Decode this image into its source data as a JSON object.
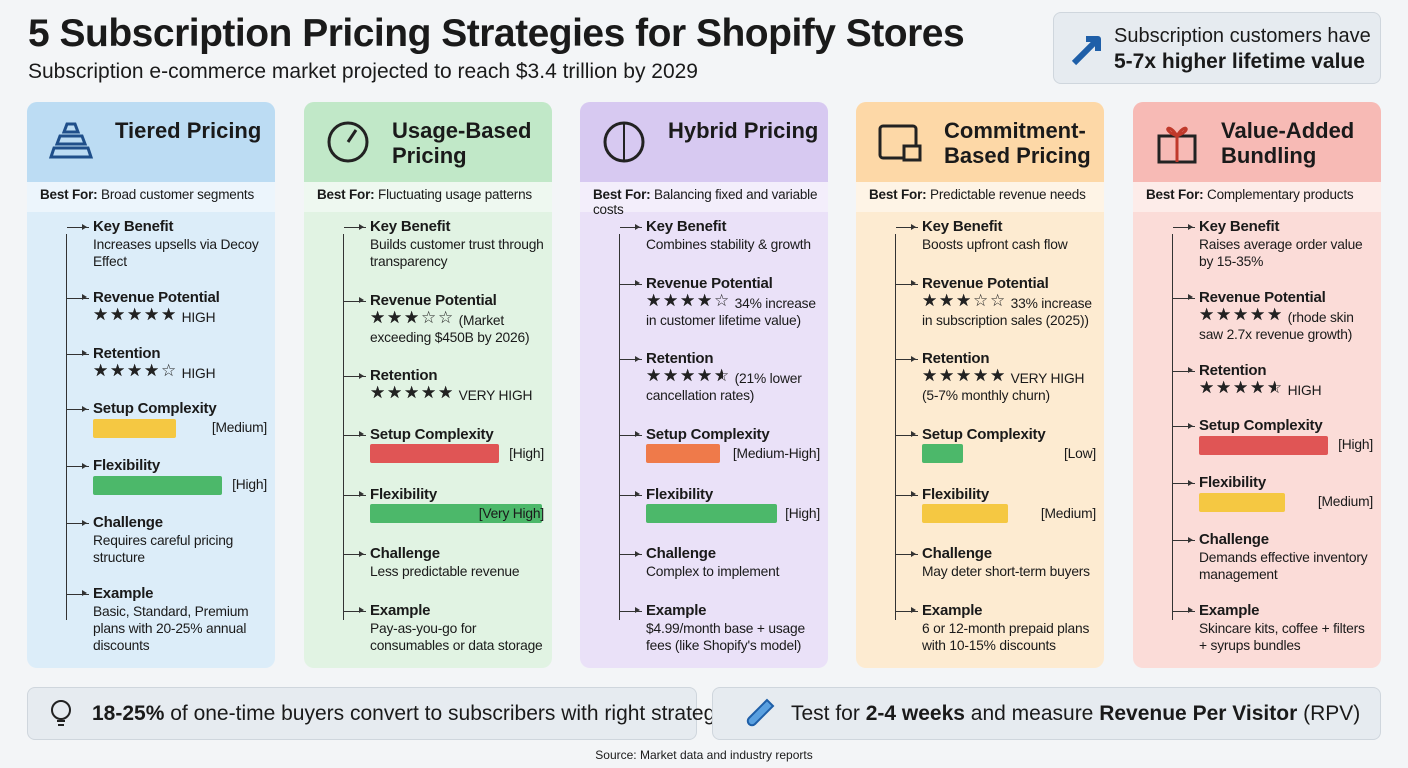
{
  "header": {
    "title": "5 Subscription Pricing Strategies for Shopify Stores",
    "subtitle": "Subscription e-commerce market projected to reach $3.4 trillion by 2029"
  },
  "callout": {
    "line1": "Subscription customers have",
    "line2": "5-7x higher lifetime value"
  },
  "labels": {
    "best_for": "Best For:",
    "key_benefit": "Key Benefit",
    "revenue": "Revenue Potential",
    "retention": "Retention",
    "setup": "Setup Complexity",
    "flexibility": "Flexibility",
    "challenge": "Challenge",
    "example": "Example"
  },
  "columns": [
    {
      "title": "Tiered Pricing",
      "head_color": "#bcdcf3",
      "body_color": "#dcedf9",
      "best_for": "Broad customer segments",
      "key_benefit": "Increases upsells via Decoy Effect",
      "revenue": {
        "stars": 5,
        "text": "HIGH"
      },
      "retention": {
        "stars": 4,
        "text": "HIGH"
      },
      "setup": {
        "level": 0.48,
        "color": "#f5c842",
        "label": "[Medium]"
      },
      "flexibility": {
        "level": 0.75,
        "color": "#4cb86a",
        "label": "[High]"
      },
      "challenge": "Requires careful pricing structure",
      "example": "Basic, Standard, Premium plans with 20-25% annual discounts"
    },
    {
      "title": "Usage-Based Pricing",
      "head_color": "#c1e8c8",
      "body_color": "#e1f3e3",
      "best_for": "Fluctuating usage patterns",
      "key_benefit": "Builds customer trust through transparency",
      "revenue": {
        "stars": 3,
        "text": "(Market exceeding $450B by 2026)"
      },
      "retention": {
        "stars": 5,
        "text": "VERY HIGH"
      },
      "setup": {
        "level": 0.75,
        "color": "#e05555",
        "label": "[High]"
      },
      "flexibility": {
        "level": 1,
        "color": "#4cb86a",
        "label": "[Very High]"
      },
      "challenge": "Less predictable revenue",
      "example": "Pay-as-you-go for consumables or data storage"
    },
    {
      "title": "Hybrid Pricing",
      "head_color": "#d7c9f1",
      "body_color": "#eae1f8",
      "best_for": "Balancing fixed and variable costs",
      "key_benefit": "Combines stability & growth",
      "revenue": {
        "stars": 4,
        "text": "34% increase in customer lifetime value)"
      },
      "retention": {
        "stars": 4.5,
        "text": "(21% lower cancellation rates)"
      },
      "setup": {
        "level": 0.43,
        "color": "#ef7a4a",
        "label": "[Medium-High]"
      },
      "flexibility": {
        "level": 0.76,
        "color": "#4cb86a",
        "label": "[High]"
      },
      "challenge": "Complex to implement",
      "example": "$4.99/month base + usage fees (like Shopify's model)"
    },
    {
      "title": "Commitment-Based Pricing",
      "head_color": "#fdd8a7",
      "body_color": "#fdebd1",
      "best_for": "Predictable revenue needs",
      "key_benefit": "Boosts upfront cash flow",
      "revenue": {
        "stars": 3,
        "text": "33% increase in subscription sales (2025))"
      },
      "retention": {
        "stars": 5,
        "text": "VERY HIGH (5-7% monthly churn)"
      },
      "setup": {
        "level": 0.24,
        "color": "#4cb86a",
        "label": "[Low]"
      },
      "flexibility": {
        "level": 0.5,
        "color": "#f5c842",
        "label": "[Medium]"
      },
      "challenge": "May deter short-term buyers",
      "example": "6 or 12-month prepaid plans with 10-15% discounts"
    },
    {
      "title": "Value-Added Bundling",
      "head_color": "#f7bab5",
      "body_color": "#fbdcd8",
      "best_for": "Complementary products",
      "key_benefit": "Raises average order value by 15-35%",
      "revenue": {
        "stars": 5,
        "text": "(rhode skin saw 2.7x revenue growth)"
      },
      "retention": {
        "stars": 4.5,
        "text": "HIGH"
      },
      "setup": {
        "level": 0.75,
        "color": "#e05555",
        "label": "[High]"
      },
      "flexibility": {
        "level": 0.5,
        "color": "#f5c842",
        "label": "[Medium]"
      },
      "challenge": "Demands effective inventory management",
      "example": "Skincare kits, coffee + filters + syrups bundles"
    }
  ],
  "footer": {
    "left": [
      {
        "text": "18-25%",
        "bold": true
      },
      {
        "text": " of one-time buyers convert to subscribers with right strategy",
        "bold": false
      }
    ],
    "right": [
      {
        "text": "Test for ",
        "bold": false
      },
      {
        "text": "2-4 weeks",
        "bold": true
      },
      {
        "text": " and measure ",
        "bold": false
      },
      {
        "text": "Revenue Per Visitor",
        "bold": true
      },
      {
        "text": " (RPV)",
        "bold": false
      }
    ],
    "source": "Source: Market data and industry reports"
  }
}
